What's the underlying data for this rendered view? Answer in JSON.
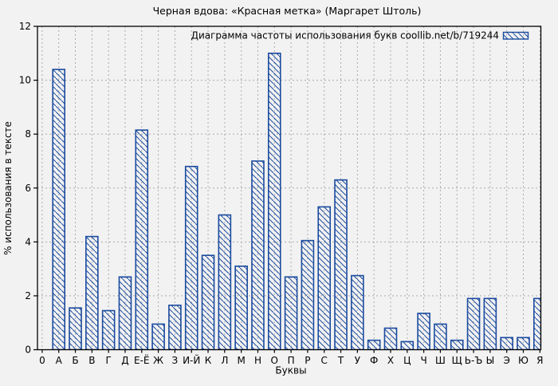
{
  "page": {
    "background_color": "#f2f2f2"
  },
  "chart_data": {
    "type": "bar",
    "title": "Черная вдова: «Красная метка» (Маргарет Штоль)",
    "legend": "Диаграмма частоты использования букв coollib.net/b/719244",
    "legend_position": "top-right-inside",
    "xlabel": "Буквы",
    "ylabel": "% использования в тексте",
    "categories": [
      "0",
      "А",
      "Б",
      "В",
      "Г",
      "Д",
      "Е-Ё",
      "Ж",
      "З",
      "И-Й",
      "К",
      "Л",
      "М",
      "Н",
      "О",
      "П",
      "Р",
      "С",
      "Т",
      "У",
      "Ф",
      "Х",
      "Ц",
      "Ч",
      "Ш",
      "Щ",
      "Ь-Ъ",
      "Ы",
      "Э",
      "Ю",
      "Я"
    ],
    "values": [
      0,
      10.4,
      1.55,
      4.2,
      1.45,
      2.7,
      8.15,
      0.95,
      1.65,
      6.8,
      3.5,
      5.0,
      3.1,
      7.0,
      11.0,
      2.7,
      4.05,
      5.3,
      6.3,
      2.75,
      0.35,
      0.8,
      0.3,
      1.35,
      0.95,
      0.35,
      1.9,
      1.9,
      0.45,
      0.45,
      1.9
    ],
    "ylim": [
      0,
      12
    ],
    "ytick_step": 2,
    "grid": "dashed-both-axes",
    "bar_style": "diagonal-hatch",
    "bar_color": "#1a4a9e",
    "grid_color": "#ababab",
    "axis_color": "#000000",
    "plot_background": "#f2f2f2"
  }
}
